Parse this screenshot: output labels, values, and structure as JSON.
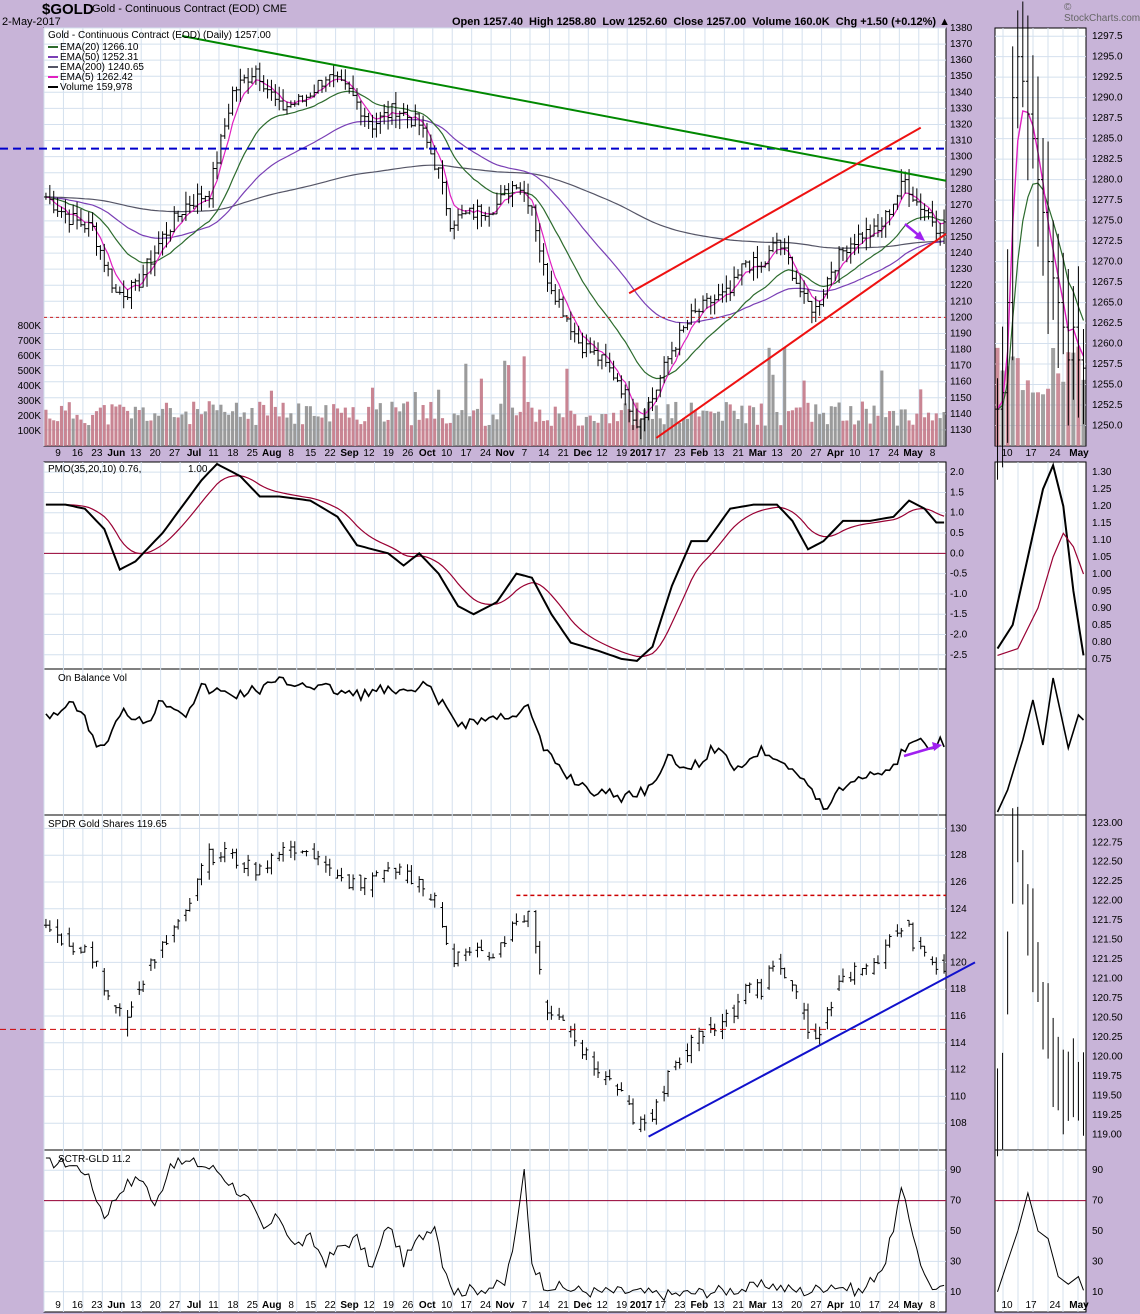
{
  "header": {
    "symbol": "$GOLD",
    "name": "Gold - Continuous Contract (EOD) CME",
    "date": "2-May-2017",
    "quote": "Open 1257.40  High 1258.80  Low 1252.60  Close 1257.00  Volume 160.0K  Chg +1.50 (+0.12%) ▲",
    "source": "© StockCharts.com"
  },
  "colors": {
    "ema20": "#2d6b2d",
    "ema50": "#7a3fb5",
    "ema200": "#555566",
    "ema5": "#e020c0",
    "trend_green": "#008800",
    "channel_red": "#ee1111",
    "blue_dash": "#0000cc",
    "arrow_purple": "#a020f0",
    "volume_up": "#8a8a8a",
    "volume_down": "#c07080",
    "pmo_signal": "#990033"
  },
  "chart_data": [
    {
      "id": "price",
      "type": "ohlc",
      "title": "Gold - Continuous Contract (EOD) (Daily) 1257.00",
      "legend": [
        {
          "name": "EMA(20) 1266.10",
          "color": "#2d6b2d"
        },
        {
          "name": "EMA(50) 1252.31",
          "color": "#7a3fb5"
        },
        {
          "name": "EMA(200) 1240.65",
          "color": "#555566"
        },
        {
          "name": "EMA(5) 1262.42",
          "color": "#e020c0"
        },
        {
          "name": "Volume 159,978",
          "color": "#000"
        }
      ],
      "ylim": [
        1120,
        1380
      ],
      "yticks": [
        1130,
        1140,
        1150,
        1160,
        1170,
        1180,
        1190,
        1200,
        1210,
        1220,
        1230,
        1240,
        1250,
        1260,
        1270,
        1280,
        1290,
        1300,
        1310,
        1320,
        1330,
        1340,
        1350,
        1360,
        1370,
        1380
      ],
      "volume_ticks": [
        "100K",
        "200K",
        "300K",
        "400K",
        "500K",
        "600K",
        "700K",
        "800K"
      ],
      "x_tick_labels": [
        "9",
        "16",
        "23",
        "Jun",
        "13",
        "20",
        "27",
        "Jul",
        "11",
        "18",
        "25",
        "Aug",
        "8",
        "15",
        "22",
        "Sep",
        "12",
        "19",
        "26",
        "Oct",
        "10",
        "17",
        "24",
        "Nov",
        "7",
        "14",
        "21",
        "Dec",
        "12",
        "19",
        "2017",
        "17",
        "23",
        "Feb",
        "13",
        "21",
        "Mar",
        "13",
        "20",
        "27",
        "Apr",
        "10",
        "17",
        "24",
        "May",
        "8"
      ],
      "close_anchors": [
        [
          0,
          1275
        ],
        [
          6,
          1262
        ],
        [
          12,
          1255
        ],
        [
          18,
          1215
        ],
        [
          23,
          1218
        ],
        [
          30,
          1250
        ],
        [
          36,
          1270
        ],
        [
          42,
          1278
        ],
        [
          48,
          1340
        ],
        [
          54,
          1355
        ],
        [
          60,
          1330
        ],
        [
          66,
          1335
        ],
        [
          72,
          1350
        ],
        [
          78,
          1340
        ],
        [
          84,
          1320
        ],
        [
          90,
          1330
        ],
        [
          96,
          1320
        ],
        [
          101,
          1290
        ],
        [
          104,
          1260
        ],
        [
          110,
          1265
        ],
        [
          116,
          1270
        ],
        [
          121,
          1285
        ],
        [
          125,
          1270
        ],
        [
          128,
          1230
        ],
        [
          132,
          1210
        ],
        [
          137,
          1185
        ],
        [
          142,
          1175
        ],
        [
          147,
          1162
        ],
        [
          152,
          1135
        ],
        [
          156,
          1150
        ],
        [
          161,
          1180
        ],
        [
          166,
          1200
        ],
        [
          171,
          1210
        ],
        [
          176,
          1215
        ],
        [
          180,
          1235
        ],
        [
          184,
          1230
        ],
        [
          188,
          1248
        ],
        [
          191,
          1235
        ],
        [
          195,
          1210
        ],
        [
          198,
          1205
        ],
        [
          202,
          1230
        ],
        [
          206,
          1245
        ],
        [
          210,
          1252
        ],
        [
          214,
          1253
        ],
        [
          218,
          1272
        ],
        [
          221,
          1285
        ],
        [
          224,
          1272
        ],
        [
          227,
          1265
        ],
        [
          229,
          1257
        ]
      ],
      "horizontal_lines": [
        {
          "value": 1305,
          "style": "blue dashed"
        },
        {
          "value": 1200,
          "style": "red dotted"
        }
      ],
      "trendlines": [
        {
          "color": "green",
          "from": [
            35,
            1375
          ],
          "to": [
            236,
            1285
          ]
        },
        {
          "color": "red",
          "from": [
            157,
            1125
          ],
          "to": [
            236,
            1252
          ]
        },
        {
          "color": "red",
          "from": [
            150,
            1215
          ],
          "to": [
            225,
            1318
          ]
        }
      ]
    },
    {
      "id": "pmo",
      "type": "line",
      "title": "PMO(35,20,10) 0.76,",
      "title_value2": "1.00",
      "ylim": [
        -2.85,
        2.25
      ],
      "yticks": [
        -2.5,
        -2.0,
        -1.5,
        -1.0,
        -0.5,
        0.0,
        0.5,
        1.0,
        1.5,
        2.0
      ],
      "anchors": [
        [
          0,
          1.2
        ],
        [
          5,
          1.2
        ],
        [
          10,
          1.1
        ],
        [
          15,
          0.6
        ],
        [
          19,
          -0.4
        ],
        [
          23,
          -0.2
        ],
        [
          30,
          0.5
        ],
        [
          40,
          1.8
        ],
        [
          44,
          2.2
        ],
        [
          50,
          1.9
        ],
        [
          55,
          1.4
        ],
        [
          60,
          1.4
        ],
        [
          68,
          1.3
        ],
        [
          75,
          0.9
        ],
        [
          80,
          0.2
        ],
        [
          88,
          0.0
        ],
        [
          92,
          -0.3
        ],
        [
          96,
          0.0
        ],
        [
          101,
          -0.5
        ],
        [
          106,
          -1.3
        ],
        [
          110,
          -1.5
        ],
        [
          116,
          -1.2
        ],
        [
          121,
          -0.5
        ],
        [
          125,
          -0.6
        ],
        [
          130,
          -1.5
        ],
        [
          135,
          -2.2
        ],
        [
          142,
          -2.4
        ],
        [
          148,
          -2.6
        ],
        [
          152,
          -2.65
        ],
        [
          156,
          -2.3
        ],
        [
          161,
          -0.8
        ],
        [
          166,
          0.3
        ],
        [
          170,
          0.3
        ],
        [
          176,
          1.1
        ],
        [
          182,
          1.2
        ],
        [
          188,
          1.2
        ],
        [
          192,
          0.8
        ],
        [
          196,
          0.1
        ],
        [
          200,
          0.3
        ],
        [
          205,
          0.8
        ],
        [
          212,
          0.8
        ],
        [
          218,
          0.9
        ],
        [
          222,
          1.3
        ],
        [
          226,
          1.1
        ],
        [
          229,
          0.76
        ]
      ]
    },
    {
      "id": "obv",
      "type": "line",
      "title": "On Balance Vol",
      "anchors": [
        [
          0,
          715
        ],
        [
          8,
          705
        ],
        [
          14,
          750
        ],
        [
          20,
          712
        ],
        [
          26,
          720
        ],
        [
          30,
          700
        ],
        [
          36,
          712
        ],
        [
          40,
          688
        ],
        [
          48,
          695
        ],
        [
          54,
          690
        ],
        [
          60,
          682
        ],
        [
          66,
          683
        ],
        [
          74,
          690
        ],
        [
          80,
          695
        ],
        [
          86,
          690
        ],
        [
          92,
          694
        ],
        [
          98,
          686
        ],
        [
          101,
          700
        ],
        [
          106,
          724
        ],
        [
          112,
          720
        ],
        [
          118,
          716
        ],
        [
          124,
          708
        ],
        [
          128,
          750
        ],
        [
          134,
          775
        ],
        [
          140,
          790
        ],
        [
          148,
          797
        ],
        [
          154,
          790
        ],
        [
          160,
          760
        ],
        [
          166,
          768
        ],
        [
          172,
          748
        ],
        [
          178,
          768
        ],
        [
          184,
          750
        ],
        [
          190,
          760
        ],
        [
          196,
          785
        ],
        [
          200,
          810
        ],
        [
          204,
          790
        ],
        [
          210,
          775
        ],
        [
          218,
          768
        ],
        [
          222,
          740
        ],
        [
          226,
          745
        ],
        [
          229,
          742
        ]
      ],
      "y_range": [
        815,
        672
      ]
    },
    {
      "id": "gld",
      "type": "ohlc",
      "title": "SPDR Gold Shares 119.65",
      "ylim": [
        106,
        131
      ],
      "yticks": [
        108,
        110,
        112,
        114,
        116,
        118,
        120,
        122,
        124,
        126,
        128,
        130
      ],
      "close_anchors": [
        [
          0,
          122.5
        ],
        [
          6,
          121.5
        ],
        [
          12,
          120.5
        ],
        [
          17,
          117
        ],
        [
          20,
          115.5
        ],
        [
          23,
          118
        ],
        [
          30,
          121
        ],
        [
          36,
          124
        ],
        [
          42,
          128
        ],
        [
          48,
          128
        ],
        [
          54,
          127
        ],
        [
          60,
          128
        ],
        [
          66,
          128.5
        ],
        [
          72,
          127
        ],
        [
          78,
          126
        ],
        [
          84,
          126
        ],
        [
          90,
          127
        ],
        [
          96,
          126
        ],
        [
          101,
          124
        ],
        [
          104,
          120.5
        ],
        [
          110,
          120.5
        ],
        [
          116,
          121
        ],
        [
          121,
          123
        ],
        [
          125,
          124
        ],
        [
          128,
          117
        ],
        [
          132,
          116
        ],
        [
          137,
          114
        ],
        [
          142,
          112
        ],
        [
          147,
          111
        ],
        [
          152,
          108
        ],
        [
          156,
          108.5
        ],
        [
          161,
          112
        ],
        [
          166,
          114
        ],
        [
          171,
          115
        ],
        [
          176,
          116
        ],
        [
          180,
          118
        ],
        [
          184,
          118
        ],
        [
          188,
          120
        ],
        [
          191,
          119
        ],
        [
          195,
          116
        ],
        [
          198,
          114
        ],
        [
          202,
          117
        ],
        [
          206,
          119
        ],
        [
          210,
          119.5
        ],
        [
          214,
          120
        ],
        [
          218,
          122
        ],
        [
          221,
          123
        ],
        [
          224,
          121
        ],
        [
          227,
          120.5
        ],
        [
          229,
          119.65
        ]
      ],
      "horizontal_lines": [
        {
          "value": 125,
          "style": "red dashed"
        },
        {
          "value": 115,
          "style": "red dashed"
        }
      ],
      "trendlines": [
        {
          "color": "blue",
          "from": [
            155,
            107
          ],
          "to": [
            240,
            120
          ]
        }
      ]
    },
    {
      "id": "sctr",
      "type": "line",
      "title": "SCTR-GLD 11.2",
      "ylim": [
        0,
        100
      ],
      "yticks": [
        10,
        30,
        50,
        70,
        90
      ],
      "horizontal_lines": [
        {
          "value": 70
        }
      ],
      "anchors": [
        [
          0,
          95
        ],
        [
          5,
          95
        ],
        [
          10,
          90
        ],
        [
          15,
          60
        ],
        [
          20,
          80
        ],
        [
          25,
          85
        ],
        [
          28,
          65
        ],
        [
          32,
          95
        ],
        [
          38,
          95
        ],
        [
          44,
          90
        ],
        [
          48,
          80
        ],
        [
          52,
          70
        ],
        [
          56,
          50
        ],
        [
          60,
          60
        ],
        [
          64,
          40
        ],
        [
          68,
          45
        ],
        [
          72,
          30
        ],
        [
          76,
          40
        ],
        [
          80,
          45
        ],
        [
          84,
          25
        ],
        [
          88,
          55
        ],
        [
          92,
          30
        ],
        [
          96,
          45
        ],
        [
          100,
          55
        ],
        [
          102,
          30
        ],
        [
          105,
          10
        ],
        [
          112,
          12
        ],
        [
          118,
          15
        ],
        [
          121,
          50
        ],
        [
          123,
          90
        ],
        [
          125,
          30
        ],
        [
          128,
          15
        ],
        [
          134,
          12
        ],
        [
          140,
          10
        ],
        [
          150,
          10
        ],
        [
          160,
          8
        ],
        [
          170,
          10
        ],
        [
          180,
          12
        ],
        [
          186,
          15
        ],
        [
          190,
          12
        ],
        [
          196,
          10
        ],
        [
          202,
          15
        ],
        [
          210,
          10
        ],
        [
          216,
          30
        ],
        [
          220,
          76
        ],
        [
          224,
          40
        ],
        [
          226,
          20
        ],
        [
          229,
          11
        ]
      ]
    },
    {
      "id": "zoom",
      "type": "ohlc",
      "title": "",
      "ylim": [
        1247.5,
        1298.5
      ],
      "yticks": [
        1250.0,
        1252.5,
        1255.0,
        1257.5,
        1260.0,
        1262.5,
        1265.0,
        1267.5,
        1270.0,
        1272.5,
        1275.0,
        1277.5,
        1280.0,
        1282.5,
        1285.0,
        1287.5,
        1290.0,
        1292.5,
        1295.0,
        1297.5
      ],
      "pmo_ticks": [
        0.75,
        0.8,
        0.85,
        0.9,
        0.95,
        1.0,
        1.05,
        1.1,
        1.15,
        1.2,
        1.25,
        1.3
      ],
      "gld_ticks": [
        119.0,
        119.25,
        119.5,
        119.75,
        120.0,
        120.25,
        120.5,
        120.75,
        121.0,
        121.25,
        121.5,
        121.75,
        122.0,
        122.25,
        122.5,
        122.75,
        123.0
      ],
      "sctr_ticks": [
        10,
        30,
        50,
        70,
        90
      ],
      "x_tick_labels": [
        "10",
        "17",
        "24",
        "May"
      ]
    }
  ]
}
